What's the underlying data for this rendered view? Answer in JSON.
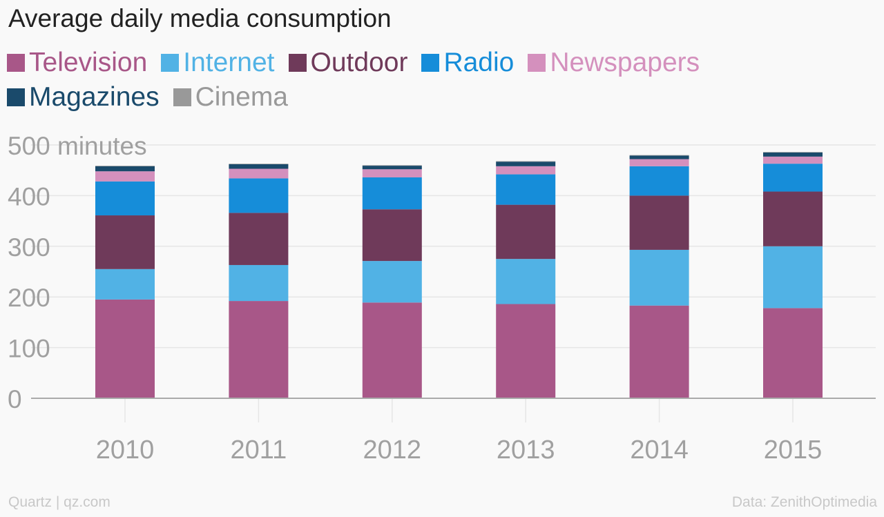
{
  "title": "Average daily media consumption",
  "footer": {
    "source_left": "Quartz | qz.com",
    "source_right": "Data: ZenithOptimedia"
  },
  "chart_data": {
    "type": "bar",
    "stacked": true,
    "categories": [
      "2010",
      "2011",
      "2012",
      "2013",
      "2014",
      "2015"
    ],
    "y_tick_labels": [
      "0",
      "100",
      "200",
      "300",
      "400",
      "500 minutes"
    ],
    "y_ticks": [
      0,
      100,
      200,
      300,
      400,
      500
    ],
    "ylim": [
      0,
      500
    ],
    "grid": true,
    "legend_placement": "top-left",
    "series": [
      {
        "name": "Television",
        "color": "#a85788",
        "values": [
          195,
          192,
          189,
          186,
          183,
          178
        ]
      },
      {
        "name": "Internet",
        "color": "#51b2e5",
        "values": [
          60,
          71,
          82,
          89,
          110,
          122
        ]
      },
      {
        "name": "Outdoor",
        "color": "#6f3a5a",
        "values": [
          106,
          103,
          102,
          107,
          107,
          108
        ]
      },
      {
        "name": "Radio",
        "color": "#168dd9",
        "values": [
          67,
          68,
          63,
          60,
          58,
          55
        ]
      },
      {
        "name": "Newspapers",
        "color": "#d490bd",
        "values": [
          20,
          19,
          16,
          16,
          14,
          14
        ]
      },
      {
        "name": "Magazines",
        "color": "#1a4a6b",
        "values": [
          10,
          9,
          7,
          9,
          7,
          8
        ]
      },
      {
        "name": "Cinema",
        "color": "#999999",
        "values": [
          1,
          1,
          1,
          1,
          1,
          1
        ]
      }
    ]
  }
}
